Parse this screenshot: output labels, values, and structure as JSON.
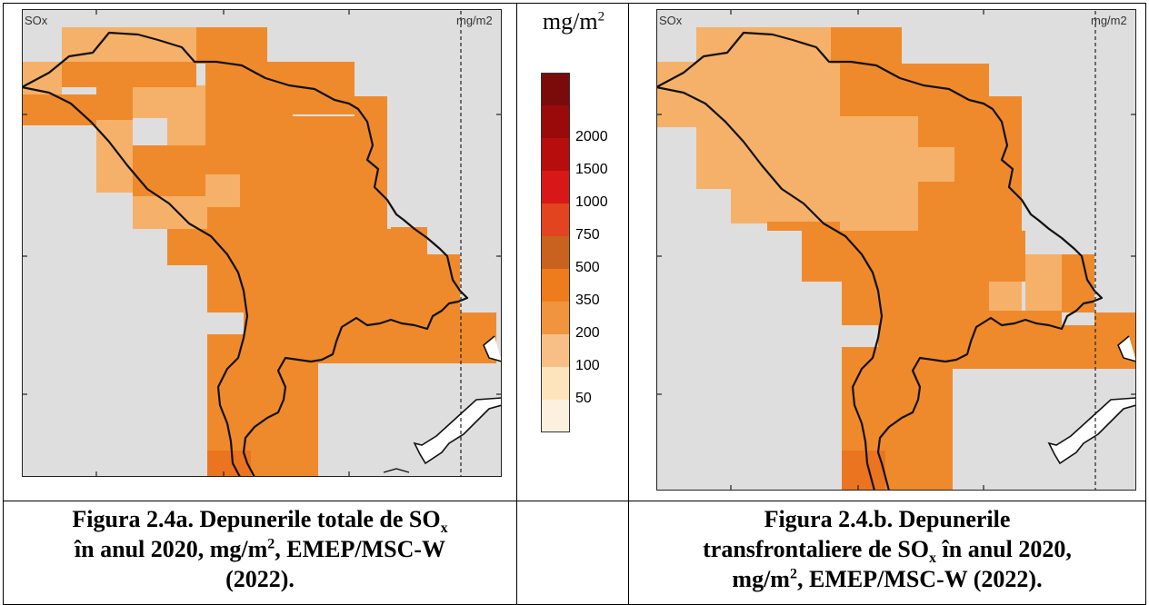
{
  "maps": [
    {
      "panel": "a",
      "species_label": "SOx",
      "unit_label": "mg/m2",
      "caption": {
        "line1": "Figura 2.4a. Depunerile totale de SO",
        "line1_sub": "x",
        "line2_a": "în anul 2020, mg/m",
        "line2_sup": "2",
        "line2_b": ", EMEP/MSC-W",
        "line3": "(2022)."
      }
    },
    {
      "panel": "b",
      "species_label": "SOx",
      "unit_label": "mg/m2",
      "caption": {
        "line1": "Figura 2.4.b. Depunerile",
        "line2_a": "transfrontaliere de SO",
        "line2_sub": "x",
        "line2_b": " în anul 2020,",
        "line3_a": "mg/m",
        "line3_sup": "2",
        "line3_b": ", EMEP/MSC-W (2022)."
      }
    }
  ],
  "legend": {
    "title": "mg/m",
    "title_sup": "2",
    "classes": [
      {
        "label": "",
        "color": "#7a0b0b"
      },
      {
        "label": "2000",
        "color": "#9a0a0a"
      },
      {
        "label": "1500",
        "color": "#b80d0d"
      },
      {
        "label": "1000",
        "color": "#d81818"
      },
      {
        "label": "750",
        "color": "#e2441f"
      },
      {
        "label": "500",
        "color": "#c8621e"
      },
      {
        "label": "350",
        "color": "#ef7c1c"
      },
      {
        "label": "200",
        "color": "#f0953e"
      },
      {
        "label": "100",
        "color": "#f7bf86"
      },
      {
        "label": "50",
        "color": "#fde4bd"
      },
      {
        "label": "",
        "color": "#fcf1df"
      }
    ]
  },
  "colors": {
    "background_cell": "#dedede",
    "deposition_350_500": "#ef8a2c",
    "deposition_200_350": "#f5b16a",
    "deposition_500_750": "#ea7420",
    "border_line": "#111111"
  }
}
